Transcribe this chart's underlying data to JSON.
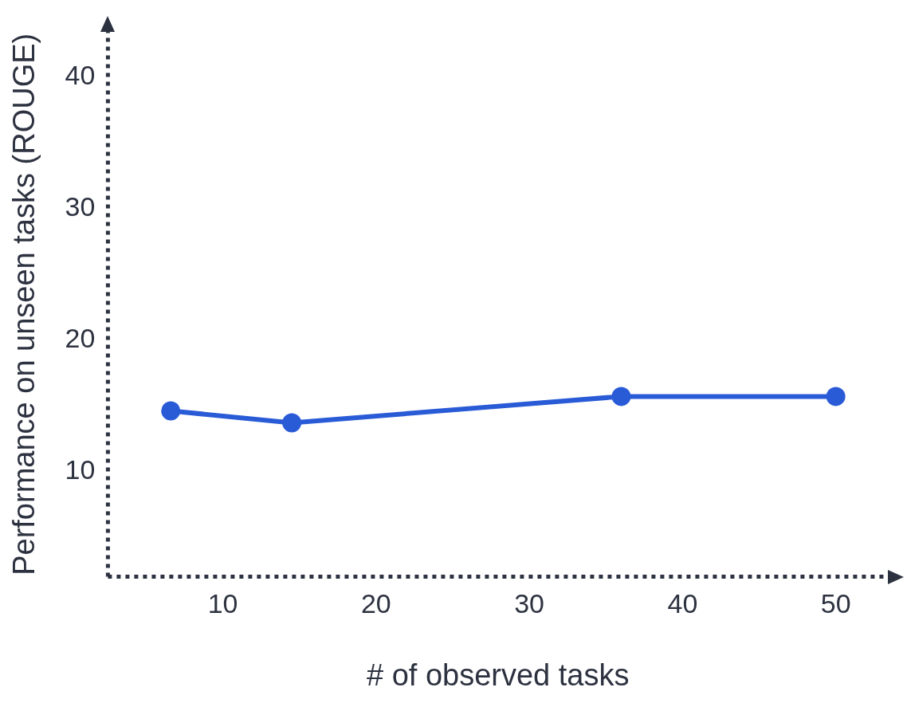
{
  "chart_data": {
    "type": "line",
    "xlabel": "# of observed tasks",
    "ylabel": "Performance on unseen tasks (ROUGE)",
    "x": [
      6.6,
      14.5,
      36,
      50
    ],
    "series": [
      {
        "color": "#2a5bd7",
        "values": [
          14.6,
          13.7,
          15.7,
          15.7
        ]
      }
    ],
    "xlim": [
      2.5,
      53.4
    ],
    "ylim": [
      2,
      43.4
    ],
    "xticks": [
      10,
      20,
      30,
      40,
      50
    ],
    "yticks": [
      10,
      20,
      30,
      40
    ],
    "grid": false,
    "legend": false,
    "marker": "circle",
    "line_style": "solid"
  }
}
